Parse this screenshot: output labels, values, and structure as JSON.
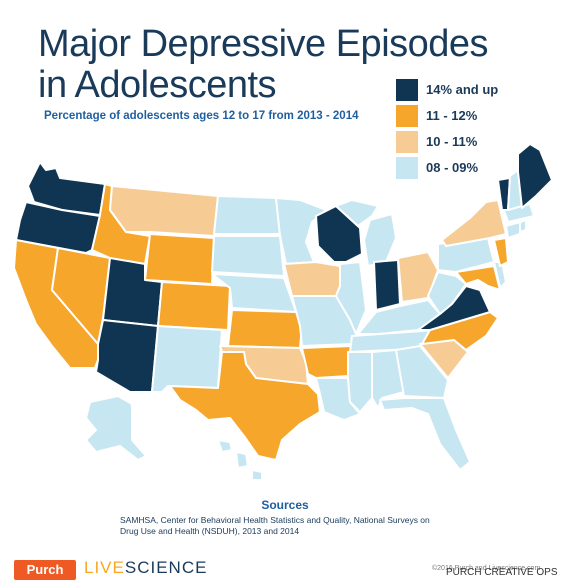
{
  "title": "Major Depressive Episodes in Adolescents",
  "subtitle": "Percentage of adolescents ages 12 to 17 from 2013 - 2014",
  "colors": {
    "dark": "#0f3552",
    "orange": "#f5a62b",
    "peach": "#f7cc94",
    "light": "#c6e6f2",
    "text": "#1a3a5a",
    "accent": "#1f5f9f"
  },
  "legend": [
    {
      "label": "14% and up",
      "color": "#0f3552"
    },
    {
      "label": "11 - 12%",
      "color": "#f5a62b"
    },
    {
      "label": "10 - 11%",
      "color": "#f7cc94"
    },
    {
      "label": "08 - 09%",
      "color": "#c6e6f2"
    }
  ],
  "states": {
    "dark": [
      "WA",
      "OR",
      "UT",
      "AZ",
      "WI",
      "IN",
      "VA",
      "ME",
      "VT"
    ],
    "orange": [
      "ID",
      "WY",
      "CA",
      "NV",
      "CO",
      "KS",
      "TX",
      "AR",
      "NC",
      "MD",
      "NJ"
    ],
    "peach": [
      "MT",
      "IA",
      "OH",
      "NY",
      "OK",
      "SC"
    ],
    "light": [
      "ND",
      "SD",
      "NE",
      "MN",
      "MO",
      "IL",
      "MI",
      "KY",
      "TN",
      "MS",
      "AL",
      "GA",
      "FL",
      "LA",
      "NM",
      "WV",
      "PA",
      "MA",
      "CT",
      "NH",
      "RI",
      "DE",
      "AK",
      "HI"
    ]
  },
  "sources": {
    "title": "Sources",
    "text": "SAMHSA, Center for Behavioral Health Statistics and Quality, National Surveys on Drug Use and Health (NSDUH), 2013 and 2014"
  },
  "footer": {
    "purch": "Purch",
    "live": "LIVE",
    "science": "SCIENCE",
    "copyright": "©2016 Purch and Livescience.com",
    "watermark": "PURCH CREATIVE OPS"
  }
}
